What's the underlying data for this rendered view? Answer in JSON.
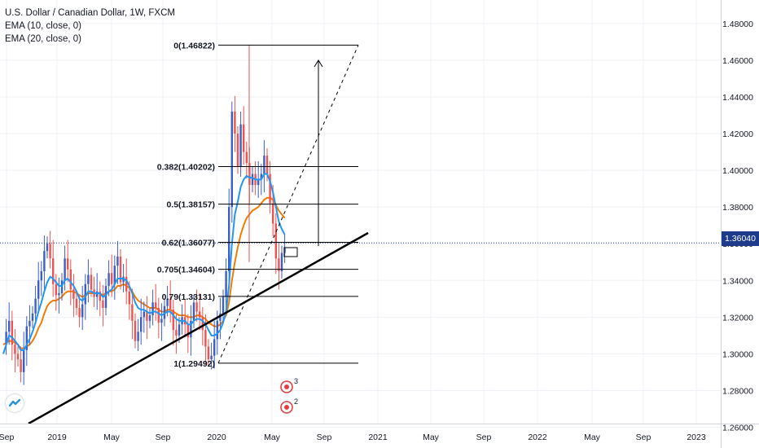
{
  "header": {
    "title": "U.S. Dollar / Canadian Dollar, 1W, FXCM",
    "indicators": [
      "EMA (10, close, 0)",
      "EMA (20, close, 0)"
    ]
  },
  "colors": {
    "up": "#3c5ec7",
    "down": "#ef5350",
    "ema10": "#2196f3",
    "ema20": "#f57c00",
    "line": "#000000",
    "grid": "#eef1f6",
    "last_price_line": "#1e3a8a",
    "price_tag": "#1e3a8a"
  },
  "chart_data": {
    "type": "candlestick",
    "title": "U.S. Dollar / Canadian Dollar, 1W, FXCM",
    "ylim": [
      1.262,
      1.4928
    ],
    "y_ticks": [
      "1.26000",
      "1.28000",
      "1.30000",
      "1.32000",
      "1.34000",
      "1.36000",
      "1.38000",
      "1.40000",
      "1.42000",
      "1.44000",
      "1.46000",
      "1.48000"
    ],
    "y_tick_values": [
      1.26,
      1.28,
      1.3,
      1.32,
      1.34,
      1.36,
      1.38,
      1.4,
      1.42,
      1.44,
      1.46,
      1.48
    ],
    "x_ticks": [
      "Sep",
      "2019",
      "May",
      "Sep",
      "2020",
      "May",
      "Sep",
      "2021",
      "May",
      "Sep",
      "2022",
      "May",
      "Sep",
      "2023"
    ],
    "last_price": "1.36040",
    "last_price_value": 1.3604,
    "fib_levels": [
      {
        "label": "0(1.46822)",
        "value": 1.46822
      },
      {
        "label": "0.382(1.40202)",
        "value": 1.40202
      },
      {
        "label": "0.5(1.38157)",
        "value": 1.38157
      },
      {
        "label": "0.62(1.36077)",
        "value": 1.36077
      },
      {
        "label": "0.705(1.34604)",
        "value": 1.34604
      },
      {
        "label": "0.79(1.33131)",
        "value": 1.33131
      },
      {
        "label": "1(1.29492)",
        "value": 1.29492
      }
    ],
    "candles_close_path": [
      1.305,
      1.312,
      1.318,
      1.305,
      1.3,
      1.297,
      1.29,
      1.302,
      1.315,
      1.318,
      1.322,
      1.33,
      1.34,
      1.345,
      1.356,
      1.36,
      1.352,
      1.338,
      1.332,
      1.333,
      1.34,
      1.352,
      1.346,
      1.335,
      1.33,
      1.325,
      1.32,
      1.327,
      1.338,
      1.343,
      1.335,
      1.331,
      1.334,
      1.329,
      1.325,
      1.337,
      1.344,
      1.338,
      1.348,
      1.353,
      1.339,
      1.342,
      1.334,
      1.327,
      1.318,
      1.307,
      1.312,
      1.32,
      1.323,
      1.318,
      1.321,
      1.328,
      1.325,
      1.317,
      1.319,
      1.326,
      1.33,
      1.324,
      1.313,
      1.31,
      1.316,
      1.32,
      1.316,
      1.309,
      1.318,
      1.328,
      1.323,
      1.32,
      1.313,
      1.304,
      1.297,
      1.299,
      1.308,
      1.318,
      1.322,
      1.331,
      1.345,
      1.38,
      1.432,
      1.42,
      1.402,
      1.425,
      1.41,
      1.404,
      1.392,
      1.398,
      1.392,
      1.395,
      1.398,
      1.408,
      1.398,
      1.382,
      1.371,
      1.352,
      1.345,
      1.355,
      1.358
    ],
    "ema10": [
      1.3,
      1.305,
      1.31,
      1.309,
      1.307,
      1.305,
      1.302,
      1.302,
      1.305,
      1.308,
      1.312,
      1.317,
      1.323,
      1.328,
      1.334,
      1.339,
      1.342,
      1.341,
      1.339,
      1.337,
      1.337,
      1.34,
      1.341,
      1.339,
      1.337,
      1.334,
      1.33,
      1.329,
      1.331,
      1.334,
      1.334,
      1.333,
      1.333,
      1.333,
      1.331,
      1.332,
      1.334,
      1.335,
      1.338,
      1.341,
      1.341,
      1.341,
      1.34,
      1.337,
      1.333,
      1.328,
      1.325,
      1.324,
      1.324,
      1.323,
      1.322,
      1.323,
      1.323,
      1.322,
      1.321,
      1.322,
      1.323,
      1.323,
      1.321,
      1.319,
      1.318,
      1.318,
      1.318,
      1.316,
      1.316,
      1.318,
      1.319,
      1.319,
      1.318,
      1.316,
      1.313,
      1.31,
      1.31,
      1.311,
      1.313,
      1.317,
      1.323,
      1.337,
      1.36,
      1.376,
      1.383,
      1.391,
      1.395,
      1.397,
      1.396,
      1.396,
      1.395,
      1.395,
      1.395,
      1.398,
      1.398,
      1.394,
      1.388,
      1.38,
      1.372,
      1.368,
      1.365
    ],
    "ema20": [
      1.305,
      1.306,
      1.307,
      1.307,
      1.306,
      1.305,
      1.303,
      1.303,
      1.304,
      1.305,
      1.307,
      1.31,
      1.314,
      1.317,
      1.322,
      1.326,
      1.328,
      1.329,
      1.329,
      1.33,
      1.331,
      1.333,
      1.334,
      1.334,
      1.334,
      1.333,
      1.332,
      1.331,
      1.332,
      1.333,
      1.333,
      1.333,
      1.333,
      1.333,
      1.332,
      1.333,
      1.334,
      1.334,
      1.335,
      1.337,
      1.337,
      1.338,
      1.337,
      1.336,
      1.334,
      1.331,
      1.329,
      1.328,
      1.327,
      1.326,
      1.325,
      1.325,
      1.325,
      1.324,
      1.323,
      1.323,
      1.324,
      1.324,
      1.323,
      1.322,
      1.321,
      1.321,
      1.321,
      1.32,
      1.32,
      1.32,
      1.321,
      1.321,
      1.32,
      1.319,
      1.317,
      1.316,
      1.315,
      1.315,
      1.316,
      1.318,
      1.321,
      1.328,
      1.34,
      1.35,
      1.358,
      1.365,
      1.37,
      1.374,
      1.376,
      1.378,
      1.379,
      1.38,
      1.382,
      1.384,
      1.385,
      1.385,
      1.384,
      1.381,
      1.378,
      1.376,
      1.374
    ]
  }
}
